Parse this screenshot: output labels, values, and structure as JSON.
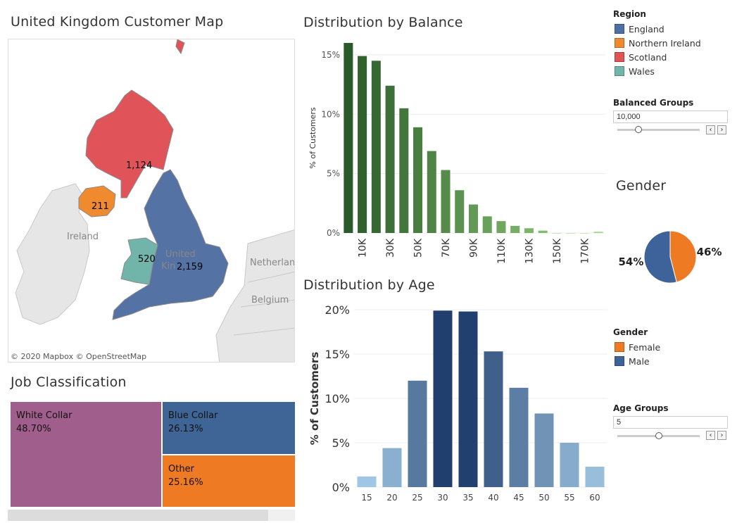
{
  "map": {
    "title": "United Kingdom Customer Map",
    "regions": [
      {
        "name": "England",
        "count": "2,159",
        "color": "#4e6fa3"
      },
      {
        "name": "Northern Ireland",
        "count": "211",
        "color": "#ef8a2e"
      },
      {
        "name": "Scotland",
        "count": "1,124",
        "color": "#e05358"
      },
      {
        "name": "Wales",
        "count": "520",
        "color": "#71b4aa"
      }
    ],
    "places": {
      "ireland": "Ireland",
      "uk_line1": "United",
      "uk_line2": "Kin",
      "netherlands": "Netherlan",
      "belgium": "Belgium"
    },
    "copyright": "© 2020 Mapbox  © OpenStreetMap"
  },
  "job": {
    "title": "Job Classification",
    "cells": [
      {
        "name": "White Collar",
        "pct": "48.70%",
        "color": "#a05e8c"
      },
      {
        "name": "Blue Collar",
        "pct": "26.13%",
        "color": "#3f6596"
      },
      {
        "name": "Other",
        "pct": "25.16%",
        "color": "#ef7a24"
      }
    ]
  },
  "legend_region": {
    "title": "Region",
    "items": [
      {
        "label": "England",
        "color": "#4e6fa3"
      },
      {
        "label": "Northern Ireland",
        "color": "#ef8a2e"
      },
      {
        "label": "Scotland",
        "color": "#e05358"
      },
      {
        "label": "Wales",
        "color": "#71b4aa"
      }
    ]
  },
  "param_balance": {
    "title": "Balanced Groups",
    "value": "10,000",
    "fraction": 0.25
  },
  "param_age": {
    "title": "Age Groups",
    "value": "5",
    "fraction": 0.5
  },
  "gender": {
    "title": "Gender"
  },
  "legend_gender": {
    "title": "Gender",
    "items": [
      {
        "label": "Female",
        "color": "#ef7a24"
      },
      {
        "label": "Male",
        "color": "#3e629a"
      }
    ]
  },
  "chart_data": [
    {
      "type": "bar",
      "title": "Distribution by Balance",
      "ylabel": "% of Customers",
      "xlabel": "",
      "ylim": [
        0,
        16
      ],
      "yticks": [
        "0%",
        "5%",
        "10%",
        "15%"
      ],
      "categories": [
        "0K",
        "10K",
        "20K",
        "30K",
        "40K",
        "50K",
        "60K",
        "70K",
        "80K",
        "90K",
        "100K",
        "110K",
        "120K",
        "130K",
        "140K",
        "150K",
        "160K",
        "170K",
        "180K"
      ],
      "tick_labels": [
        "10K",
        "30K",
        "50K",
        "70K",
        "90K",
        "110K",
        "130K",
        "150K",
        "170K"
      ],
      "values": [
        16.0,
        14.9,
        14.5,
        12.4,
        10.5,
        8.9,
        6.9,
        5.3,
        3.6,
        2.4,
        1.4,
        1.0,
        0.6,
        0.4,
        0.2,
        0.0,
        0.0,
        0.0,
        0.1
      ],
      "grid": true
    },
    {
      "type": "bar",
      "title": "Distribution by Age",
      "ylabel": "% of Customers",
      "xlabel": "",
      "ylim": [
        0,
        20
      ],
      "yticks": [
        "0%",
        "5%",
        "10%",
        "15%",
        "20%"
      ],
      "categories": [
        "15",
        "20",
        "25",
        "30",
        "35",
        "40",
        "45",
        "50",
        "55",
        "60"
      ],
      "values": [
        1.2,
        4.4,
        12.0,
        19.9,
        19.8,
        15.3,
        11.2,
        8.3,
        5.0,
        2.3
      ],
      "grid": true
    },
    {
      "type": "pie",
      "title": "Gender",
      "slices": [
        {
          "label": "Female",
          "value": 46,
          "text": "46%",
          "color": "#ef7a24"
        },
        {
          "label": "Male",
          "value": 54,
          "text": "54%",
          "color": "#3e629a"
        }
      ]
    }
  ]
}
